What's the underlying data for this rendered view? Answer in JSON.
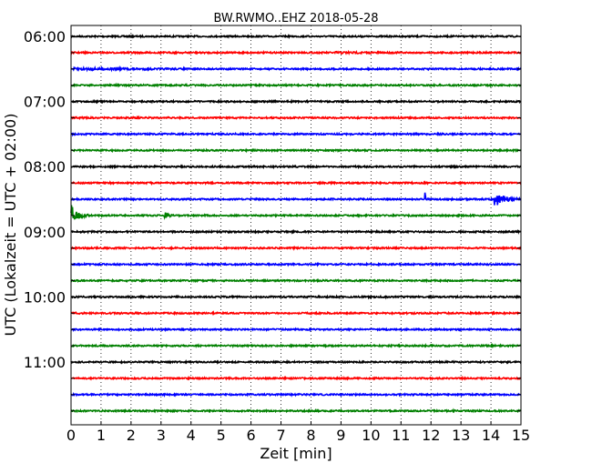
{
  "chart_data": {
    "type": "line",
    "title": "BW.RWMO..EHZ 2018-05-28",
    "xlabel": "Zeit  [min]",
    "ylabel": "UTC (Lokalzeit = UTC + 02:00)",
    "xlim": [
      0,
      15
    ],
    "x_ticks": [
      "0",
      "1",
      "2",
      "3",
      "4",
      "5",
      "6",
      "7",
      "8",
      "9",
      "10",
      "11",
      "12",
      "13",
      "14",
      "15"
    ],
    "y_ticks": [
      "06:00",
      "07:00",
      "08:00",
      "09:00",
      "10:00",
      "11:00"
    ],
    "grid": true,
    "trace_colors": [
      "#000000",
      "#ff0000",
      "#0000ff",
      "#008000"
    ],
    "traces": [
      {
        "time": "06:00",
        "color": "#000000"
      },
      {
        "time": "06:15",
        "color": "#ff0000"
      },
      {
        "time": "06:30",
        "color": "#0000ff"
      },
      {
        "time": "06:45",
        "color": "#008000"
      },
      {
        "time": "07:00",
        "color": "#000000"
      },
      {
        "time": "07:15",
        "color": "#ff0000"
      },
      {
        "time": "07:30",
        "color": "#0000ff"
      },
      {
        "time": "07:45",
        "color": "#008000"
      },
      {
        "time": "08:00",
        "color": "#000000"
      },
      {
        "time": "08:15",
        "color": "#ff0000"
      },
      {
        "time": "08:30",
        "color": "#0000ff"
      },
      {
        "time": "08:45",
        "color": "#008000"
      },
      {
        "time": "09:00",
        "color": "#000000"
      },
      {
        "time": "09:15",
        "color": "#ff0000"
      },
      {
        "time": "09:30",
        "color": "#0000ff"
      },
      {
        "time": "09:45",
        "color": "#008000"
      },
      {
        "time": "10:00",
        "color": "#000000"
      },
      {
        "time": "10:15",
        "color": "#ff0000"
      },
      {
        "time": "10:30",
        "color": "#0000ff"
      },
      {
        "time": "10:45",
        "color": "#008000"
      },
      {
        "time": "11:00",
        "color": "#000000"
      },
      {
        "time": "11:15",
        "color": "#ff0000"
      },
      {
        "time": "11:30",
        "color": "#0000ff"
      },
      {
        "time": "11:45",
        "color": "#008000"
      }
    ],
    "events": [
      {
        "trace": "06:15",
        "start": 8.8,
        "end": 15.0,
        "amplitude": 0.08
      },
      {
        "trace": "06:30",
        "start": 0.0,
        "end": 12.0,
        "amplitude": 0.1
      },
      {
        "trace": "08:30",
        "start": 11.8,
        "end": 11.9,
        "amplitude": 0.9
      },
      {
        "trace": "08:30",
        "start": 14.1,
        "end": 15.0,
        "amplitude": 1.0
      },
      {
        "trace": "08:45",
        "start": 0.0,
        "end": 0.6,
        "amplitude": 1.2
      },
      {
        "trace": "08:45",
        "start": 3.1,
        "end": 3.5,
        "amplitude": 0.5
      }
    ]
  }
}
